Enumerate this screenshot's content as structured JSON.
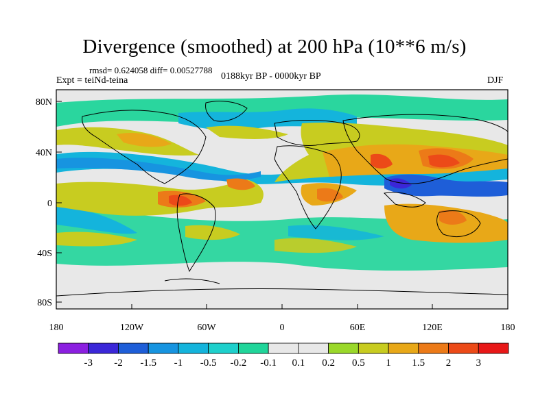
{
  "title": "Divergence (smoothed) at 200 hPa (10**6 m/s)",
  "stats": "rmsd= 0.624058 diff= 0.00527788",
  "experiment": "Expt = teiNd-teina",
  "period": "0188kyr BP - 0000kyr BP",
  "season": "DJF",
  "y_axis_labels": [
    "80N",
    "40N",
    "0",
    "40S",
    "80S"
  ],
  "x_axis_labels": [
    "180",
    "120W",
    "60W",
    "0",
    "60E",
    "120E",
    "180"
  ],
  "colorbar": {
    "labels": [
      "-3",
      "-2",
      "-1.5",
      "-1",
      "-0.5",
      "-0.2",
      "-0.1",
      "0.1",
      "0.2",
      "0.5",
      "1",
      "1.5",
      "2",
      "3"
    ],
    "colors": [
      "#8b1fe0",
      "#3b27d8",
      "#1e5ed8",
      "#1794e0",
      "#14b4dc",
      "#1ed0cc",
      "#20d59a",
      "#e8e8e8",
      "#9ad82a",
      "#c8cc20",
      "#e8a818",
      "#ec7a18",
      "#ec4a18",
      "#e81818"
    ]
  }
}
